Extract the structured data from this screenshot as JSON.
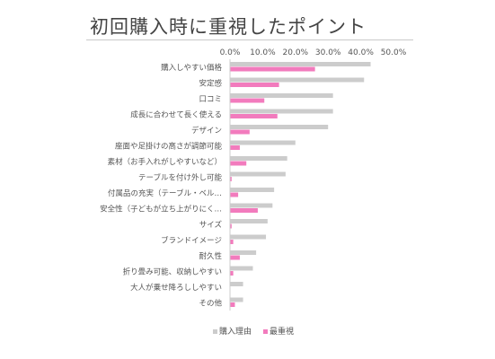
{
  "chart_data": {
    "type": "bar",
    "orientation": "horizontal",
    "title": "初回購入時に重視したポイント",
    "categories": [
      "購入しやすい価格",
      "安定感",
      "口コミ",
      "成長に合わせて長く使える",
      "デザイン",
      "座面や足掛けの高さが調節可能",
      "素材（お手入れがしやすいなど）",
      "テーブルを付け外し可能",
      "付属品の充実（テーブル・ベル…",
      "安全性（子どもが立ち上がりにく…",
      "サイズ",
      "ブランドイメージ",
      "耐久性",
      "折り畳み可能、収納しやすい",
      "大人が乗せ降ろししやすい",
      "その他"
    ],
    "series": [
      {
        "name": "購入理由",
        "color": "#cccccc",
        "values": [
          43.0,
          41.0,
          31.5,
          31.5,
          30.0,
          20.0,
          17.5,
          17.0,
          13.5,
          13.0,
          11.5,
          11.0,
          8.0,
          7.0,
          4.0,
          4.0
        ]
      },
      {
        "name": "最重視",
        "color": "#f27bbd",
        "values": [
          26.0,
          15.0,
          10.5,
          14.5,
          6.0,
          3.0,
          5.0,
          0.5,
          2.5,
          8.5,
          0.5,
          1.0,
          3.0,
          1.0,
          0.0,
          1.5
        ]
      }
    ],
    "xlim": [
      0,
      50
    ],
    "xticks": [
      "0.0%",
      "10.0%",
      "20.0%",
      "30.0%",
      "40.0%",
      "50.0%"
    ],
    "tick_values": [
      0,
      10,
      20,
      30,
      40,
      50
    ],
    "legend_position": "bottom",
    "grid": false
  }
}
